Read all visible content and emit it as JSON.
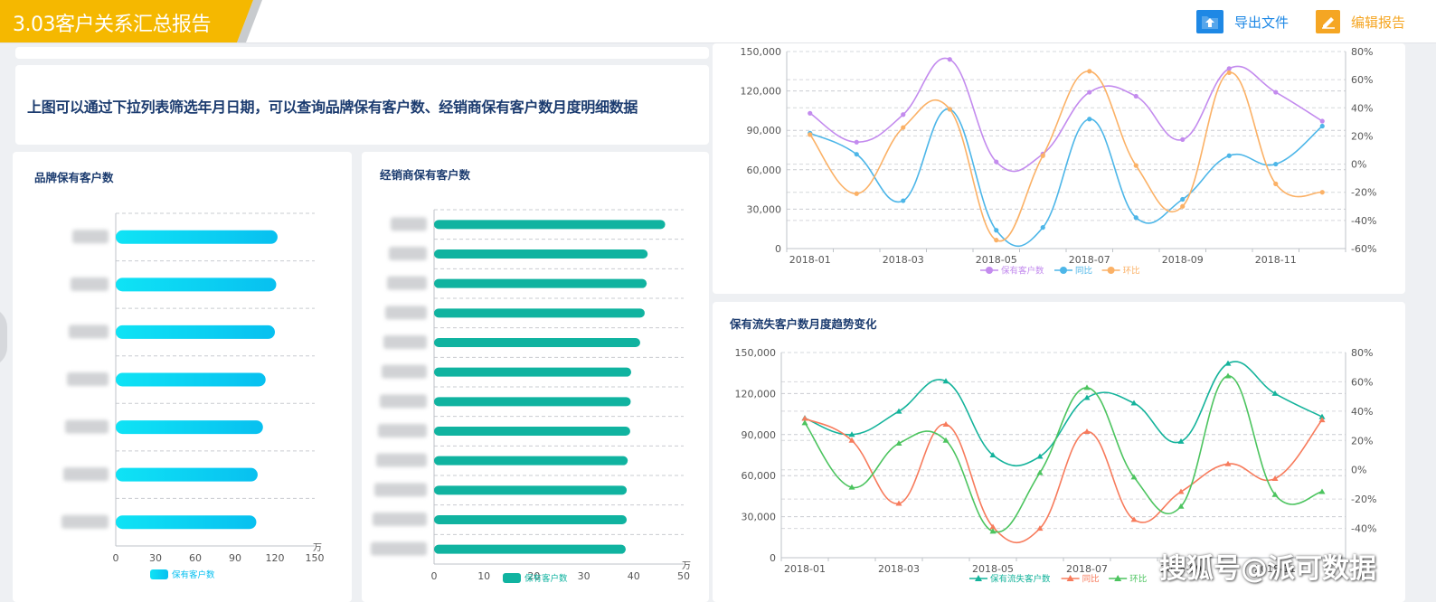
{
  "header": {
    "title": "3.03客户关系汇总报告",
    "export_label": "导出文件",
    "edit_label": "编辑报告",
    "export_icon": "upload-folder-icon",
    "edit_icon": "pencil-icon",
    "colors": {
      "title_bg": "#f5b800",
      "export_icon_bg": "#1e88e5",
      "edit_icon_bg": "#f5a623",
      "link": "#1e88e5",
      "edit_link": "#f5a623"
    }
  },
  "description": "上图可以通过下拉列表筛选年月日期，可以查询品牌保有客户数、经销商保有客户数月度明细数据",
  "brand_panel": {
    "title": "品牌保有客户数"
  },
  "dealer_panel": {
    "title": "经销商保有客户数"
  },
  "trend_panel": {
    "title": "保有流失客户数月度趋势变化"
  },
  "watermark": "搜狐号@派可数据",
  "chart_data": [
    {
      "id": "brand",
      "type": "bar",
      "orientation": "horizontal",
      "unit": "万",
      "xlim": [
        0,
        150
      ],
      "ticks": [
        0,
        30,
        60,
        90,
        120,
        150
      ],
      "tick_labels": [
        "0",
        "30",
        "60",
        "90",
        "120",
        "150"
      ],
      "legend": [
        "保有客户数"
      ],
      "series": [
        {
          "name": "保有客户数",
          "values": [
            122,
            121,
            120,
            113,
            111,
            107,
            106
          ]
        }
      ],
      "colors": {
        "bar_start": "#0fe3f5",
        "bar_end": "#08c0f0"
      }
    },
    {
      "id": "dealer",
      "type": "bar",
      "orientation": "horizontal",
      "unit": "万",
      "xlim": [
        0,
        50
      ],
      "ticks": [
        0,
        10,
        20,
        30,
        40,
        50
      ],
      "tick_labels": [
        "0",
        "10",
        "20",
        "30",
        "40",
        "50"
      ],
      "legend": [
        "保有客户数"
      ],
      "series": [
        {
          "name": "保有客户数",
          "values": [
            46.3,
            42.8,
            42.6,
            42.2,
            41.3,
            39.5,
            39.4,
            39.3,
            38.8,
            38.6,
            38.6,
            38.4
          ]
        }
      ],
      "colors": {
        "bar": "#10b3a0"
      }
    },
    {
      "id": "top-line",
      "type": "line",
      "categories": [
        "2018-01",
        "2018-02",
        "2018-03",
        "2018-04",
        "2018-05",
        "2018-06",
        "2018-07",
        "2018-08",
        "2018-09",
        "2018-10",
        "2018-11",
        "2018-12"
      ],
      "x_tick_labels": [
        "2018-01",
        "2018-03",
        "2018-05",
        "2018-07",
        "2018-09",
        "2018-11"
      ],
      "ylim": [
        0,
        150000
      ],
      "y_ticks": [
        "0",
        "30,000",
        "60,000",
        "90,000",
        "120,000",
        "150,000"
      ],
      "y2lim": [
        -60,
        80
      ],
      "y2_ticks": [
        "-60%",
        "-40%",
        "-20%",
        "0%",
        "20%",
        "40%",
        "60%",
        "80%"
      ],
      "legend": [
        "保有客户数",
        "同比",
        "环比"
      ],
      "series": [
        {
          "name": "保有客户数",
          "axis": "left",
          "color": "#c38bee",
          "marker": "circle",
          "values": [
            103000,
            81000,
            102000,
            144000,
            66000,
            72000,
            119000,
            116000,
            83000,
            137000,
            119000,
            97000
          ]
        },
        {
          "name": "同比",
          "axis": "right",
          "color": "#4db6e8",
          "marker": "circle",
          "values": [
            22,
            7,
            -26,
            39,
            -47,
            -45,
            32,
            -38,
            -25,
            6,
            0,
            27
          ]
        },
        {
          "name": "环比",
          "axis": "right",
          "color": "#fbb166",
          "marker": "circle",
          "values": [
            21,
            -21,
            26,
            39,
            -54,
            6,
            66,
            -1,
            -30,
            65,
            -14,
            -20
          ]
        }
      ]
    },
    {
      "id": "bottom-line",
      "type": "line",
      "categories": [
        "2018-01",
        "2018-02",
        "2018-03",
        "2018-04",
        "2018-05",
        "2018-06",
        "2018-07",
        "2018-08",
        "2018-09",
        "2018-10",
        "2018-11",
        "2018-12"
      ],
      "x_tick_labels": [
        "2018-01",
        "2018-03",
        "2018-05",
        "2018-07",
        "2018-09",
        "2018-11"
      ],
      "ylim": [
        0,
        150000
      ],
      "y_ticks": [
        "0",
        "30,000",
        "60,000",
        "90,000",
        "120,000",
        "150,000"
      ],
      "y2lim": [
        -60,
        80
      ],
      "y2_ticks": [
        "-40%",
        "-20%",
        "0%",
        "20%",
        "40%",
        "60%",
        "80%"
      ],
      "legend": [
        "保有流失客户数",
        "同比",
        "环比"
      ],
      "series": [
        {
          "name": "保有流失客户数",
          "axis": "left",
          "color": "#14b39b",
          "marker": "triangle",
          "values": [
            102000,
            90000,
            107000,
            129000,
            75000,
            74000,
            117000,
            113000,
            85000,
            142000,
            120000,
            103000
          ]
        },
        {
          "name": "同比",
          "axis": "right",
          "color": "#f77b5c",
          "marker": "triangle",
          "values": [
            35,
            20,
            -23,
            31,
            -39,
            -40,
            26,
            -34,
            -15,
            4,
            -6,
            34
          ]
        },
        {
          "name": "环比",
          "axis": "right",
          "color": "#4cc45f",
          "marker": "triangle",
          "values": [
            32,
            -12,
            18,
            20,
            -42,
            -2,
            56,
            -5,
            -25,
            64,
            -17,
            -15
          ]
        }
      ]
    }
  ]
}
